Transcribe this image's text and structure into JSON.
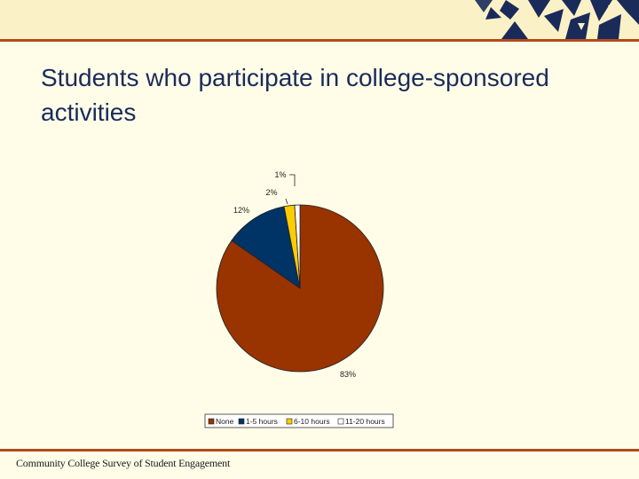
{
  "slide": {
    "title": "Students who participate in college-sponsored activities",
    "footer": "Community College Survey of Student Engagement"
  },
  "colors": {
    "band": "#fbf1c6",
    "rule": "#b34a1a",
    "navy": "#1a2b5a",
    "background": "#fffde8"
  },
  "chart_data": {
    "type": "pie",
    "categories": [
      "None",
      "1-5 hours",
      "6-10 hours",
      "11-20 hours"
    ],
    "values": [
      83,
      12,
      2,
      1
    ],
    "labels": [
      "83%",
      "12%",
      "2%",
      "1%"
    ],
    "colors": [
      "#993300",
      "#003366",
      "#ffcc00",
      "#ffffff"
    ],
    "legend_position": "bottom",
    "title": ""
  }
}
